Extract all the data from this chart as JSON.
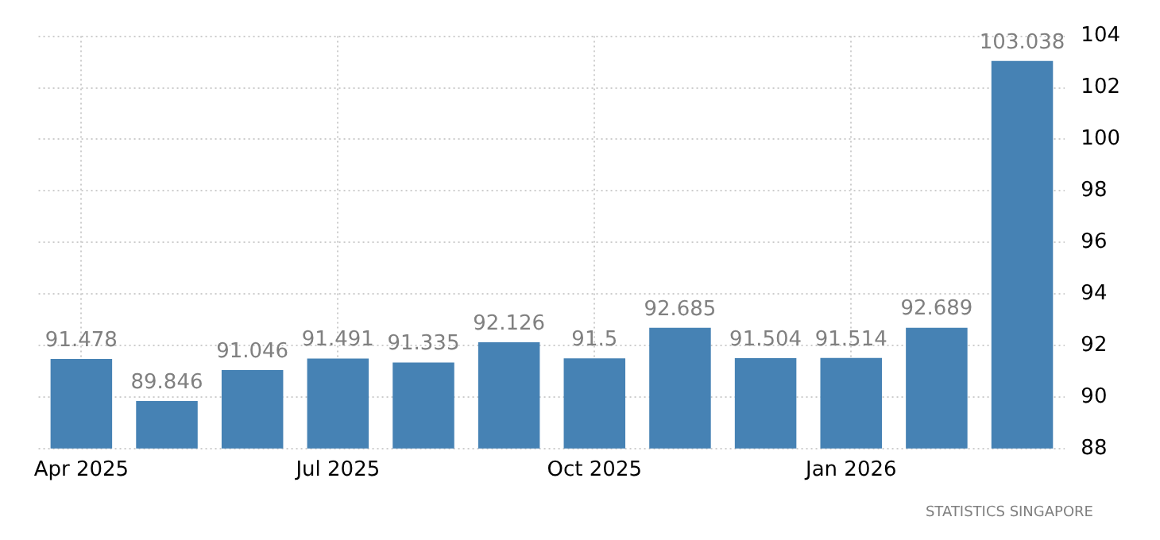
{
  "chart_data": {
    "type": "bar",
    "categories": [
      "Apr 2025",
      null,
      null,
      "Jul 2025",
      null,
      null,
      "Oct 2025",
      null,
      null,
      "Jan 2026",
      null,
      null
    ],
    "values": [
      91.478,
      89.846,
      91.046,
      91.491,
      91.335,
      92.126,
      91.5,
      92.685,
      91.504,
      91.514,
      92.689,
      103.038
    ],
    "value_labels": [
      "91.478",
      "89.846",
      "91.046",
      "91.491",
      "91.335",
      "92.126",
      "91.5",
      "92.685",
      "91.504",
      "91.514",
      "92.689",
      "103.038"
    ],
    "color": "#4682b4",
    "ylim": [
      88,
      104
    ],
    "yticks": [
      88,
      90,
      92,
      94,
      96,
      98,
      100,
      102,
      104
    ],
    "grid": true,
    "legend": false,
    "annotations": [
      "STATISTICS SINGAPORE"
    ]
  }
}
